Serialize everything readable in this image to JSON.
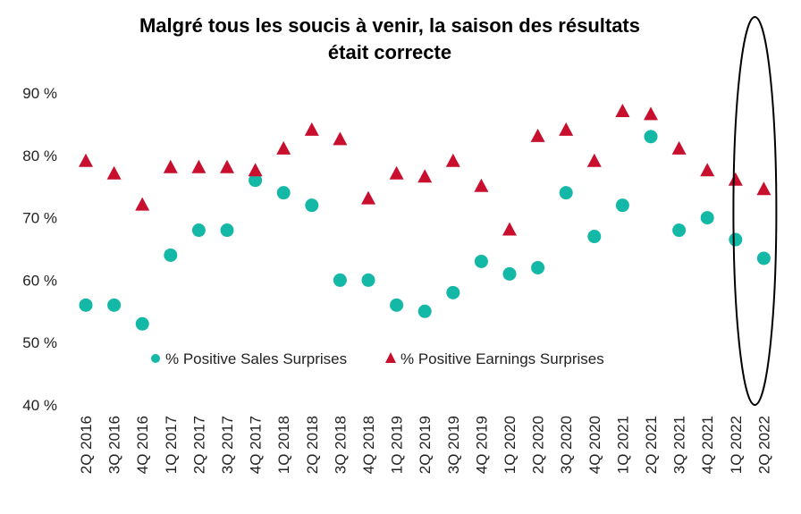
{
  "chart_data": {
    "type": "scatter",
    "title_lines": [
      "Malgré tous les soucis à venir, la saison des résultats",
      "était correcte"
    ],
    "categories": [
      "2Q 2016",
      "3Q 2016",
      "4Q 2016",
      "1Q 2017",
      "2Q 2017",
      "3Q 2017",
      "4Q 2017",
      "1Q 2018",
      "2Q 2018",
      "3Q 2018",
      "4Q 2018",
      "1Q 2019",
      "2Q 2019",
      "3Q 2019",
      "4Q 2019",
      "1Q 2020",
      "2Q 2020",
      "3Q 2020",
      "4Q 2020",
      "1Q 2021",
      "2Q 2021",
      "3Q 2021",
      "4Q 2021",
      "1Q 2022",
      "2Q 2022"
    ],
    "ylim": [
      40,
      90
    ],
    "yticks": [
      40,
      50,
      60,
      70,
      80,
      90
    ],
    "ytick_labels": [
      "40 %",
      "50 %",
      "60 %",
      "70 %",
      "80 %",
      "90 %"
    ],
    "grid": false,
    "legend_position": "bottom-center",
    "highlight_category": "2Q 2022",
    "series": [
      {
        "name": "% Positive Sales Surprises",
        "marker": "circle",
        "color": "#14b8a6",
        "values": [
          56,
          56,
          53,
          64,
          68,
          68,
          76,
          74,
          72,
          60,
          60,
          56,
          55,
          58,
          63,
          61,
          62,
          74,
          67,
          72,
          83,
          68,
          70,
          66.5,
          63.5
        ]
      },
      {
        "name": "% Positive Earnings Surprises",
        "marker": "triangle",
        "color": "#c8102e",
        "values": [
          79,
          77,
          72,
          78,
          78,
          78,
          77.5,
          81,
          84,
          82.5,
          73,
          77,
          76.5,
          79,
          75,
          68,
          83,
          84,
          79,
          87,
          86.5,
          81,
          77.5,
          76,
          74.5
        ]
      }
    ]
  }
}
